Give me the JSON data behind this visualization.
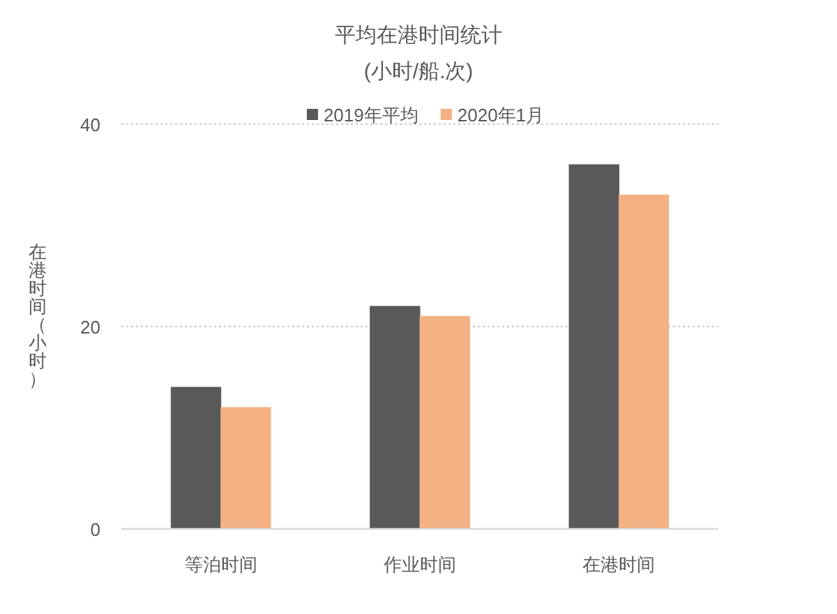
{
  "chart_data": {
    "type": "bar",
    "title": "平均在港时间统计",
    "subtitle": "(小时/船.次)",
    "ylabel": "在港时间（小时）",
    "categories": [
      "等泊时间",
      "作业时间",
      "在港时间"
    ],
    "series": [
      {
        "name": "2019年平均",
        "color": "#595959",
        "values": [
          14,
          22,
          36
        ]
      },
      {
        "name": "2020年1月",
        "color": "#f4b183",
        "values": [
          12,
          21,
          33
        ]
      }
    ],
    "ylim": [
      0,
      40
    ],
    "yticks": [
      0,
      20,
      40
    ],
    "grid": "y",
    "legend": "top"
  }
}
